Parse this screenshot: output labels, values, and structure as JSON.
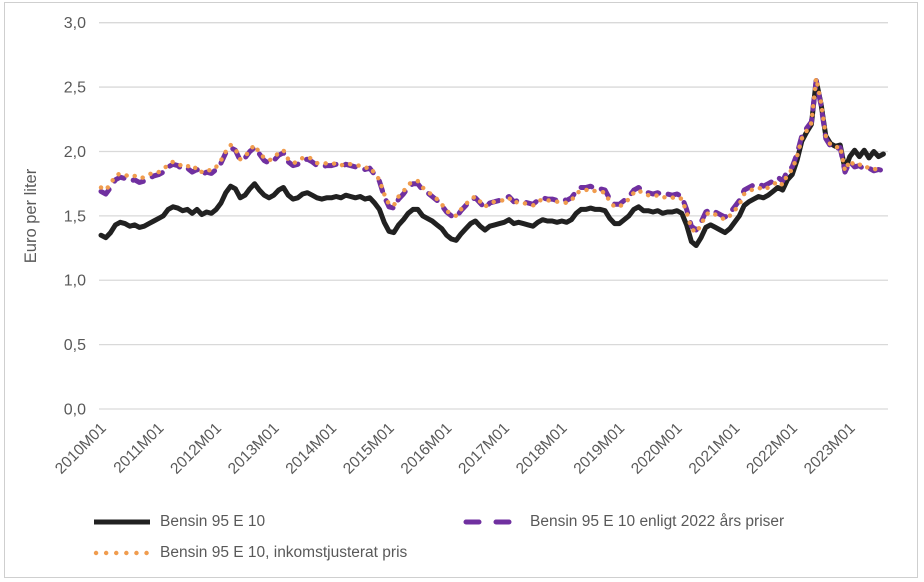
{
  "chart_data": {
    "type": "line",
    "title": "",
    "xlabel": "",
    "ylabel": "Euro per liter",
    "ylim": [
      0.0,
      3.0
    ],
    "grid": "horizontal",
    "legend_position": "bottom",
    "x_unit": "month",
    "x_range": [
      "2010M01",
      "2023M08"
    ],
    "colors": {
      "grid": "#D9D9D9",
      "axis_text": "#595959",
      "background": "#FFFFFF",
      "figure_border": "#CFCFCF"
    },
    "yticks": [
      {
        "label": "0,0",
        "value": 0.0
      },
      {
        "label": "0,5",
        "value": 0.5
      },
      {
        "label": "1,0",
        "value": 1.0
      },
      {
        "label": "1,5",
        "value": 1.5
      },
      {
        "label": "2,0",
        "value": 2.0
      },
      {
        "label": "2,5",
        "value": 2.5
      },
      {
        "label": "3,0",
        "value": 3.0
      }
    ],
    "xticks": [
      {
        "label": "2010M01",
        "month": 0
      },
      {
        "label": "2011M01",
        "month": 12
      },
      {
        "label": "2012M01",
        "month": 24
      },
      {
        "label": "2013M01",
        "month": 36
      },
      {
        "label": "2014M01",
        "month": 48
      },
      {
        "label": "2015M01",
        "month": 60
      },
      {
        "label": "2016M01",
        "month": 72
      },
      {
        "label": "2017M01",
        "month": 84
      },
      {
        "label": "2018M01",
        "month": 96
      },
      {
        "label": "2019M01",
        "month": 108
      },
      {
        "label": "2020M01",
        "month": 120
      },
      {
        "label": "2021M01",
        "month": 132
      },
      {
        "label": "2022M01",
        "month": 144
      },
      {
        "label": "2023M01",
        "month": 156
      }
    ],
    "series": [
      {
        "name": "Bensin 95 E 10",
        "color": "#212121",
        "style": "solid",
        "width": 5,
        "values": [
          1.35,
          1.33,
          1.37,
          1.43,
          1.45,
          1.44,
          1.42,
          1.43,
          1.41,
          1.42,
          1.44,
          1.46,
          1.48,
          1.5,
          1.55,
          1.57,
          1.56,
          1.54,
          1.55,
          1.52,
          1.55,
          1.51,
          1.53,
          1.52,
          1.55,
          1.6,
          1.68,
          1.73,
          1.71,
          1.64,
          1.66,
          1.71,
          1.75,
          1.7,
          1.66,
          1.64,
          1.66,
          1.7,
          1.72,
          1.66,
          1.63,
          1.64,
          1.67,
          1.68,
          1.66,
          1.64,
          1.63,
          1.64,
          1.64,
          1.65,
          1.64,
          1.66,
          1.65,
          1.64,
          1.65,
          1.63,
          1.64,
          1.6,
          1.55,
          1.45,
          1.38,
          1.37,
          1.43,
          1.47,
          1.52,
          1.55,
          1.55,
          1.5,
          1.48,
          1.46,
          1.43,
          1.4,
          1.35,
          1.32,
          1.31,
          1.36,
          1.4,
          1.44,
          1.46,
          1.42,
          1.39,
          1.42,
          1.43,
          1.44,
          1.45,
          1.47,
          1.44,
          1.45,
          1.44,
          1.43,
          1.42,
          1.45,
          1.47,
          1.46,
          1.46,
          1.45,
          1.46,
          1.45,
          1.47,
          1.52,
          1.55,
          1.55,
          1.56,
          1.55,
          1.55,
          1.54,
          1.48,
          1.44,
          1.44,
          1.47,
          1.5,
          1.55,
          1.57,
          1.54,
          1.54,
          1.53,
          1.54,
          1.52,
          1.53,
          1.53,
          1.54,
          1.52,
          1.43,
          1.3,
          1.27,
          1.33,
          1.41,
          1.43,
          1.41,
          1.39,
          1.37,
          1.4,
          1.45,
          1.5,
          1.58,
          1.61,
          1.63,
          1.65,
          1.64,
          1.66,
          1.69,
          1.72,
          1.7,
          1.78,
          1.82,
          1.93,
          2.08,
          2.15,
          2.21,
          2.55,
          2.37,
          2.12,
          2.06,
          2.04,
          2.05,
          1.86,
          1.96,
          2.01,
          1.96,
          2.01,
          1.95,
          2.0,
          1.96,
          1.98
        ]
      },
      {
        "name": "Bensin 95 E 10 enligt 2022 års priser",
        "color": "#7030A0",
        "style": "dashed",
        "width": 5,
        "values": [
          1.69,
          1.67,
          1.72,
          1.78,
          1.8,
          1.79,
          1.77,
          1.78,
          1.76,
          1.77,
          1.79,
          1.81,
          1.82,
          1.84,
          1.88,
          1.9,
          1.89,
          1.86,
          1.87,
          1.84,
          1.86,
          1.82,
          1.84,
          1.83,
          1.86,
          1.91,
          1.99,
          2.03,
          2.01,
          1.93,
          1.95,
          2.0,
          2.03,
          1.98,
          1.93,
          1.91,
          1.93,
          1.97,
          1.99,
          1.92,
          1.89,
          1.9,
          1.93,
          1.94,
          1.92,
          1.89,
          1.88,
          1.89,
          1.89,
          1.9,
          1.88,
          1.9,
          1.89,
          1.88,
          1.88,
          1.86,
          1.87,
          1.82,
          1.77,
          1.65,
          1.57,
          1.56,
          1.63,
          1.67,
          1.72,
          1.75,
          1.75,
          1.7,
          1.68,
          1.65,
          1.62,
          1.58,
          1.53,
          1.5,
          1.49,
          1.54,
          1.58,
          1.62,
          1.64,
          1.6,
          1.56,
          1.6,
          1.61,
          1.62,
          1.63,
          1.65,
          1.61,
          1.62,
          1.61,
          1.6,
          1.59,
          1.62,
          1.64,
          1.63,
          1.63,
          1.62,
          1.63,
          1.62,
          1.64,
          1.69,
          1.72,
          1.72,
          1.73,
          1.71,
          1.71,
          1.7,
          1.63,
          1.59,
          1.59,
          1.62,
          1.65,
          1.7,
          1.72,
          1.69,
          1.68,
          1.67,
          1.68,
          1.66,
          1.67,
          1.66,
          1.67,
          1.65,
          1.55,
          1.42,
          1.39,
          1.45,
          1.53,
          1.55,
          1.53,
          1.51,
          1.49,
          1.52,
          1.57,
          1.62,
          1.7,
          1.72,
          1.74,
          1.75,
          1.73,
          1.75,
          1.77,
          1.8,
          1.77,
          1.85,
          1.88,
          1.98,
          2.12,
          2.18,
          2.23,
          2.55,
          2.36,
          2.1,
          2.04,
          2.02,
          2.03,
          1.84,
          1.92,
          1.88,
          1.89,
          1.86,
          1.87,
          1.85,
          1.86,
          1.85
        ]
      },
      {
        "name": "Bensin 95 E 10, inkomstjusterat pris",
        "color": "#F09C4E",
        "style": "dotted",
        "width": 4.4,
        "values": [
          1.72,
          1.7,
          1.75,
          1.81,
          1.83,
          1.82,
          1.8,
          1.81,
          1.79,
          1.8,
          1.82,
          1.84,
          1.84,
          1.86,
          1.9,
          1.92,
          1.91,
          1.88,
          1.89,
          1.86,
          1.88,
          1.84,
          1.86,
          1.85,
          1.88,
          1.93,
          2.0,
          2.05,
          2.02,
          1.94,
          1.96,
          2.01,
          2.05,
          1.99,
          1.95,
          1.93,
          1.95,
          1.99,
          2.01,
          1.94,
          1.91,
          1.92,
          1.95,
          1.96,
          1.94,
          1.91,
          1.9,
          1.91,
          1.9,
          1.91,
          1.89,
          1.91,
          1.9,
          1.89,
          1.89,
          1.87,
          1.88,
          1.83,
          1.78,
          1.67,
          1.59,
          1.58,
          1.65,
          1.69,
          1.74,
          1.77,
          1.77,
          1.72,
          1.69,
          1.66,
          1.63,
          1.59,
          1.54,
          1.51,
          1.5,
          1.55,
          1.59,
          1.63,
          1.65,
          1.61,
          1.57,
          1.6,
          1.61,
          1.62,
          1.62,
          1.64,
          1.6,
          1.61,
          1.6,
          1.59,
          1.58,
          1.61,
          1.63,
          1.62,
          1.62,
          1.61,
          1.61,
          1.6,
          1.62,
          1.67,
          1.7,
          1.7,
          1.71,
          1.69,
          1.69,
          1.68,
          1.61,
          1.57,
          1.57,
          1.6,
          1.63,
          1.68,
          1.7,
          1.67,
          1.66,
          1.65,
          1.66,
          1.64,
          1.65,
          1.64,
          1.65,
          1.63,
          1.53,
          1.4,
          1.37,
          1.43,
          1.51,
          1.53,
          1.51,
          1.49,
          1.47,
          1.5,
          1.54,
          1.59,
          1.67,
          1.69,
          1.71,
          1.72,
          1.7,
          1.72,
          1.74,
          1.77,
          1.74,
          1.82,
          1.86,
          1.96,
          2.1,
          2.16,
          2.22,
          2.57,
          2.38,
          2.12,
          2.05,
          2.03,
          2.04,
          1.85,
          1.93,
          1.89,
          1.9,
          1.87,
          1.88,
          1.86,
          1.87,
          1.86
        ]
      }
    ]
  }
}
